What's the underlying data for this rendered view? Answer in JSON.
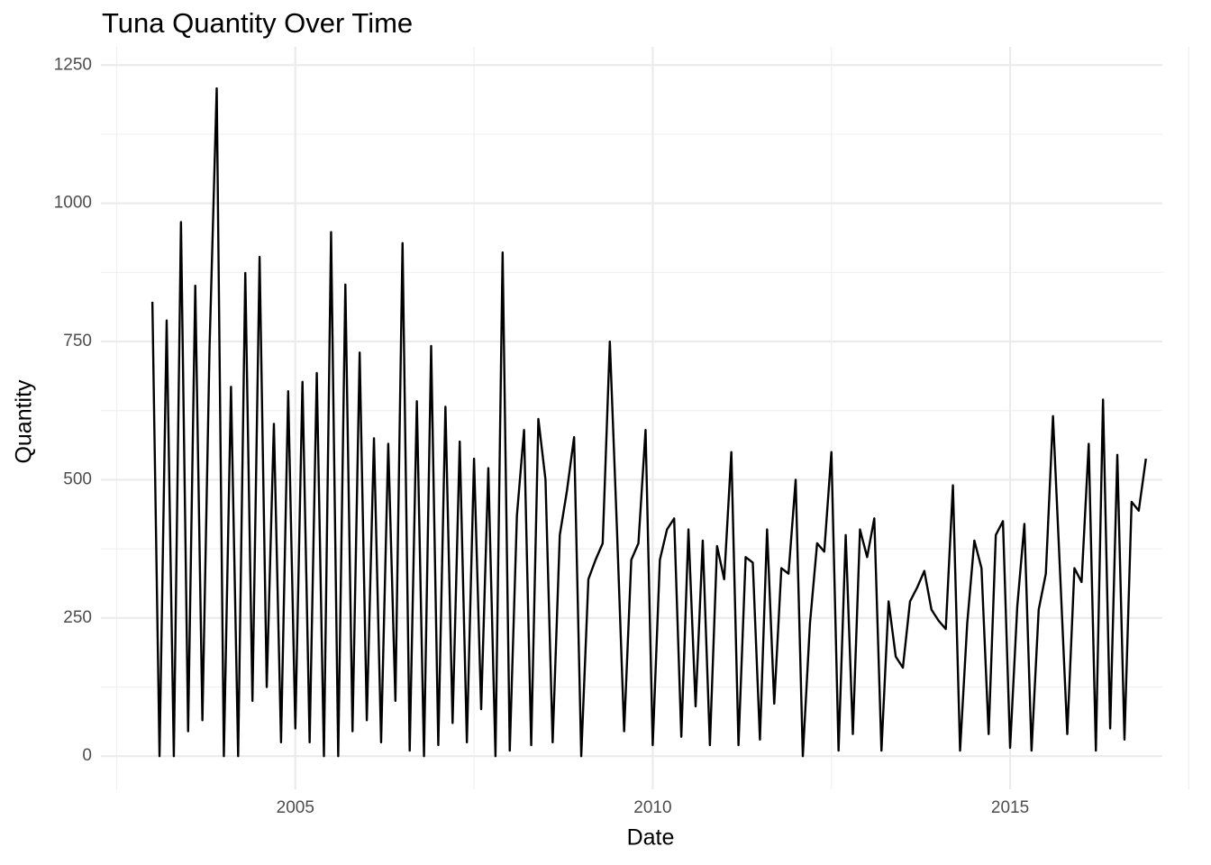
{
  "chart_data": {
    "type": "line",
    "title": "Tuna Quantity Over Time",
    "x_label": "Date",
    "y_label": "Quantity",
    "xlim": [
      2002.28,
      2017.13
    ],
    "ylim": [
      -60,
      1283
    ],
    "xticks": [
      2005,
      2010,
      2015
    ],
    "yticks": [
      0,
      250,
      500,
      750,
      1000,
      1250
    ],
    "x_minor_ticks": [
      2002.5,
      2007.5,
      2012.5,
      2017.5
    ],
    "y_minor_ticks": [
      125,
      375,
      625,
      875,
      1125
    ],
    "grid": true,
    "x": [
      2003.0,
      2003.1,
      2003.2,
      2003.3,
      2003.4,
      2003.5,
      2003.6,
      2003.7,
      2003.8,
      2003.9,
      2004.0,
      2004.1,
      2004.2,
      2004.3,
      2004.4,
      2004.5,
      2004.6,
      2004.7,
      2004.8,
      2004.9,
      2005.0,
      2005.1,
      2005.2,
      2005.3,
      2005.4,
      2005.5,
      2005.6,
      2005.7,
      2005.8,
      2005.9,
      2006.0,
      2006.1,
      2006.2,
      2006.3,
      2006.4,
      2006.5,
      2006.6,
      2006.7,
      2006.8,
      2006.9,
      2007.0,
      2007.1,
      2007.2,
      2007.3,
      2007.4,
      2007.5,
      2007.6,
      2007.7,
      2007.8,
      2007.9,
      2008.0,
      2008.1,
      2008.2,
      2008.3,
      2008.4,
      2008.5,
      2008.6,
      2008.7,
      2008.8,
      2008.9,
      2009.0,
      2009.1,
      2009.2,
      2009.3,
      2009.4,
      2009.5,
      2009.6,
      2009.7,
      2009.8,
      2009.9,
      2010.0,
      2010.1,
      2010.2,
      2010.3,
      2010.4,
      2010.5,
      2010.6,
      2010.7,
      2010.8,
      2010.9,
      2011.0,
      2011.1,
      2011.2,
      2011.3,
      2011.4,
      2011.5,
      2011.6,
      2011.7,
      2011.8,
      2011.9,
      2012.0,
      2012.1,
      2012.2,
      2012.3,
      2012.4,
      2012.5,
      2012.6,
      2012.7,
      2012.8,
      2012.9,
      2013.0,
      2013.1,
      2013.2,
      2013.3,
      2013.4,
      2013.5,
      2013.6,
      2013.7,
      2013.8,
      2013.9,
      2014.0,
      2014.1,
      2014.2,
      2014.3,
      2014.4,
      2014.5,
      2014.6,
      2014.7,
      2014.8,
      2014.9,
      2015.0,
      2015.1,
      2015.2,
      2015.3,
      2015.4,
      2015.5,
      2015.6,
      2015.7,
      2015.8,
      2015.9,
      2016.0,
      2016.1,
      2016.2,
      2016.3,
      2016.4,
      2016.5,
      2016.6,
      2016.7,
      2016.8,
      2016.9
    ],
    "series": [
      {
        "color": "#000000",
        "values": [
          822,
          0,
          788,
          0,
          966,
          45,
          851,
          65,
          740,
          1208,
          0,
          668,
          0,
          874,
          100,
          903,
          125,
          601,
          25,
          660,
          50,
          677,
          25,
          693,
          0,
          948,
          0,
          853,
          45,
          730,
          65,
          575,
          25,
          565,
          100,
          928,
          10,
          642,
          0,
          742,
          20,
          632,
          60,
          569,
          25,
          538,
          85,
          521,
          0,
          911,
          10,
          435,
          590,
          20,
          610,
          500,
          25,
          400,
          480,
          577,
          0,
          320,
          355,
          385,
          750,
          410,
          45,
          355,
          385,
          590,
          20,
          355,
          410,
          430,
          35,
          410,
          90,
          390,
          20,
          380,
          320,
          550,
          20,
          360,
          350,
          30,
          410,
          95,
          340,
          330,
          500,
          0,
          240,
          385,
          370,
          550,
          10,
          400,
          40,
          410,
          360,
          430,
          10,
          280,
          180,
          160,
          280,
          305,
          335,
          265,
          245,
          230,
          490,
          10,
          240,
          390,
          340,
          40,
          400,
          425,
          15,
          270,
          420,
          10,
          265,
          330,
          615,
          330,
          40,
          340,
          315,
          565,
          10,
          645,
          50,
          545,
          30,
          460,
          444,
          538
        ]
      }
    ]
  }
}
